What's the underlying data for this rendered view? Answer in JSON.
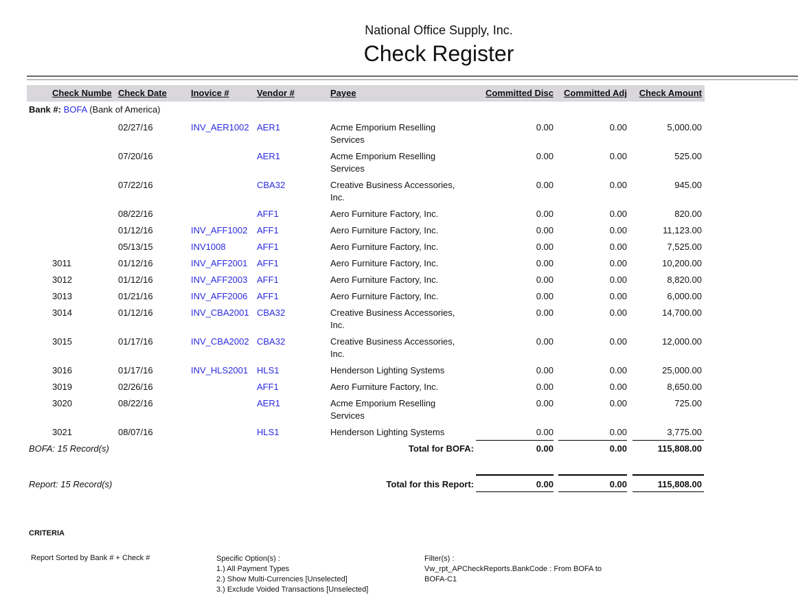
{
  "company": "National Office Supply, Inc.",
  "title": "Check Register",
  "headers": {
    "check_number": "Check Numbe",
    "check_date": "Check Date",
    "invoice": "Inovice #",
    "vendor": "Vendor #",
    "payee": "Payee",
    "committed_disc": "Committed Disc",
    "committed_adj": "Committed Adj",
    "check_amount": "Check Amount"
  },
  "bank": {
    "label": "Bank #:",
    "code": "BOFA",
    "name": "(Bank of America)"
  },
  "rows": [
    {
      "check": "",
      "date": "02/27/16",
      "invoice": "INV_AER1002",
      "vendor": "AER1",
      "payee": "Acme Emporium Reselling Services",
      "disc": "0.00",
      "adj": "0.00",
      "amount": "5,000.00"
    },
    {
      "check": "",
      "date": "07/20/16",
      "invoice": "",
      "vendor": "AER1",
      "payee": "Acme Emporium Reselling Services",
      "disc": "0.00",
      "adj": "0.00",
      "amount": "525.00"
    },
    {
      "check": "",
      "date": "07/22/16",
      "invoice": "",
      "vendor": "CBA32",
      "payee": "Creative Business Accessories, Inc.",
      "disc": "0.00",
      "adj": "0.00",
      "amount": "945.00"
    },
    {
      "check": "",
      "date": "08/22/16",
      "invoice": "",
      "vendor": "AFF1",
      "payee": "Aero Furniture Factory, Inc.",
      "disc": "0.00",
      "adj": "0.00",
      "amount": "820.00"
    },
    {
      "check": "",
      "date": "01/12/16",
      "invoice": "INV_AFF1002",
      "vendor": "AFF1",
      "payee": "Aero Furniture Factory, Inc.",
      "disc": "0.00",
      "adj": "0.00",
      "amount": "11,123.00"
    },
    {
      "check": "",
      "date": "05/13/15",
      "invoice": "INV1008",
      "vendor": "AFF1",
      "payee": "Aero Furniture Factory, Inc.",
      "disc": "0.00",
      "adj": "0.00",
      "amount": "7,525.00"
    },
    {
      "check": "3011",
      "date": "01/12/16",
      "invoice": "INV_AFF2001",
      "vendor": "AFF1",
      "payee": "Aero Furniture Factory, Inc.",
      "disc": "0.00",
      "adj": "0.00",
      "amount": "10,200.00"
    },
    {
      "check": "3012",
      "date": "01/12/16",
      "invoice": "INV_AFF2003",
      "vendor": "AFF1",
      "payee": "Aero Furniture Factory, Inc.",
      "disc": "0.00",
      "adj": "0.00",
      "amount": "8,820.00"
    },
    {
      "check": "3013",
      "date": "01/21/16",
      "invoice": "INV_AFF2006",
      "vendor": "AFF1",
      "payee": "Aero Furniture Factory, Inc.",
      "disc": "0.00",
      "adj": "0.00",
      "amount": "6,000.00"
    },
    {
      "check": "3014",
      "date": "01/12/16",
      "invoice": "INV_CBA2001",
      "vendor": "CBA32",
      "payee": "Creative Business Accessories, Inc.",
      "disc": "0.00",
      "adj": "0.00",
      "amount": "14,700.00"
    },
    {
      "check": "3015",
      "date": "01/17/16",
      "invoice": "INV_CBA2002",
      "vendor": "CBA32",
      "payee": "Creative Business Accessories, Inc.",
      "disc": "0.00",
      "adj": "0.00",
      "amount": "12,000.00"
    },
    {
      "check": "3016",
      "date": "01/17/16",
      "invoice": "INV_HLS2001",
      "vendor": "HLS1",
      "payee": "Henderson Lighting Systems",
      "disc": "0.00",
      "adj": "0.00",
      "amount": "25,000.00"
    },
    {
      "check": "3019",
      "date": "02/26/16",
      "invoice": "",
      "vendor": "AFF1",
      "payee": "Aero Furniture Factory, Inc.",
      "disc": "0.00",
      "adj": "0.00",
      "amount": "8,650.00"
    },
    {
      "check": "3020",
      "date": "08/22/16",
      "invoice": "",
      "vendor": "AER1",
      "payee": "Acme Emporium Reselling Services",
      "disc": "0.00",
      "adj": "0.00",
      "amount": "725.00"
    },
    {
      "check": "3021",
      "date": "08/07/16",
      "invoice": "",
      "vendor": "HLS1",
      "payee": "Henderson Lighting Systems",
      "disc": "0.00",
      "adj": "0.00",
      "amount": "3,775.00"
    }
  ],
  "bank_total": {
    "records": "BOFA: 15 Record(s)",
    "label": "Total for BOFA:",
    "disc": "0.00",
    "adj": "0.00",
    "amount": "115,808.00"
  },
  "report_total": {
    "records": "Report: 15 Record(s)",
    "label": "Total for this Report:",
    "disc": "0.00",
    "adj": "0.00",
    "amount": "115,808.00"
  },
  "criteria": {
    "heading": "CRITERIA",
    "sorted": "Report Sorted by Bank # + Check #",
    "options_title": "Specific Option(s) :",
    "options": [
      "1.) All Payment Types",
      "2.) Show Multi-Currencies [Unselected]",
      "3.) Exclude Voided Transactions [Unselected]"
    ],
    "filters_title": "Filter(s) :",
    "filters": [
      "Vw_rpt_APCheckReports.BankCode :  From BOFA to",
      "BOFA-C1"
    ]
  }
}
